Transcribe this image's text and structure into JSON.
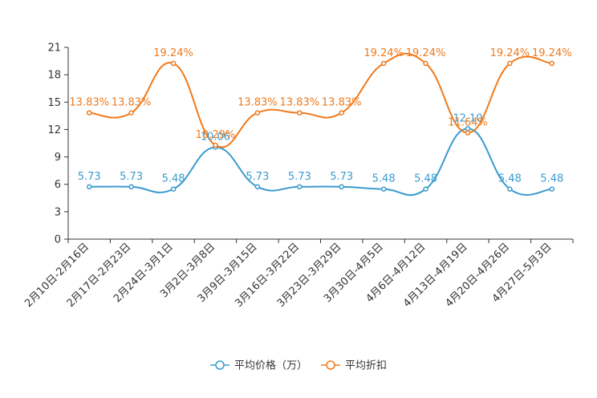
{
  "chart_data": {
    "type": "line",
    "title": "",
    "xlabel": "",
    "ylabel": "",
    "ylim": [
      0,
      21
    ],
    "yticks": [
      "0",
      "3",
      "6",
      "9",
      "12",
      "15",
      "18",
      "21"
    ],
    "categories": [
      "2月10日-2月16日",
      "2月17日-2月23日",
      "2月24日-3月1日",
      "3月2日-3月8日",
      "3月9日-3月15日",
      "3月16日-3月22日",
      "3月23日-3月29日",
      "3月30日-4月5日",
      "4月6日-4月12日",
      "4月13日-4月19日",
      "4月20日-4月26日",
      "4月27日-5月3日"
    ],
    "series": [
      {
        "name": "平均价格（万）",
        "color": "#3a9bd0",
        "values": [
          5.73,
          5.73,
          5.48,
          10.06,
          5.73,
          5.73,
          5.73,
          5.48,
          5.48,
          12.1,
          5.48,
          5.48
        ],
        "labels": [
          "5.73",
          "5.73",
          "5.48",
          "10.06",
          "5.73",
          "5.73",
          "5.73",
          "5.48",
          "5.48",
          "12.10",
          "5.48",
          "5.48"
        ]
      },
      {
        "name": "平均折扣",
        "color": "#f07a1c",
        "values": [
          13.83,
          13.83,
          19.24,
          10.29,
          13.83,
          13.83,
          13.83,
          19.24,
          19.24,
          11.64,
          19.24,
          19.24
        ],
        "labels": [
          "13.83%",
          "13.83%",
          "19.24%",
          "10.29%",
          "13.83%",
          "13.83%",
          "13.83%",
          "19.24%",
          "19.24%",
          "11.64%",
          "19.24%",
          "19.24%"
        ]
      }
    ],
    "legend_position": "bottom-center"
  }
}
